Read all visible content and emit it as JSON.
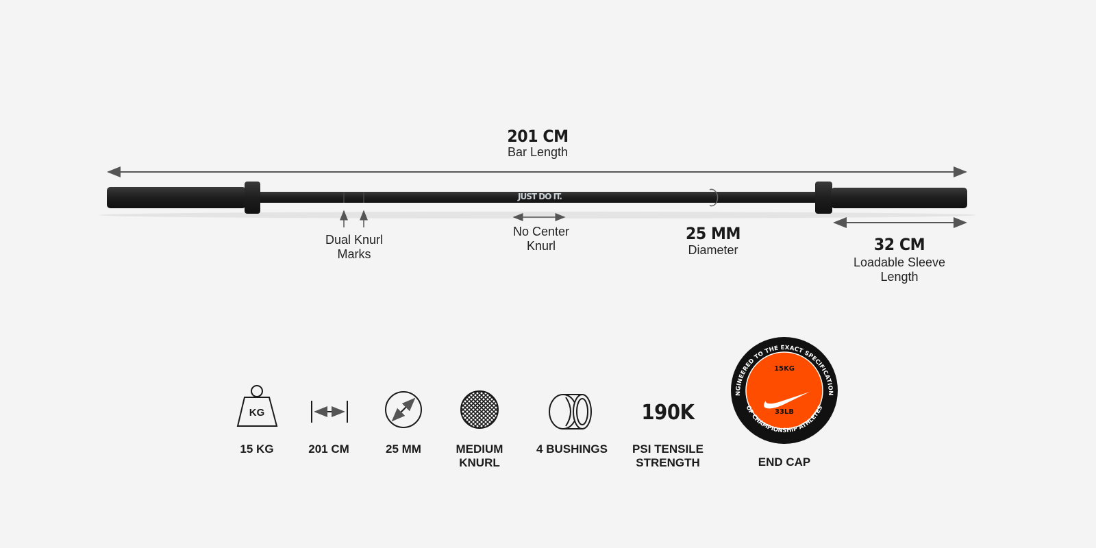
{
  "bar": {
    "logo_text": "JUST DO IT.",
    "length": {
      "value": "201 CM",
      "label": "Bar Length"
    },
    "knurl_marks": {
      "label_line1": "Dual Knurl",
      "label_line2": "Marks"
    },
    "center_knurl": {
      "label_line1": "No Center",
      "label_line2": "Knurl"
    },
    "diameter": {
      "value": "25 MM",
      "label": "Diameter"
    },
    "sleeve": {
      "value": "32 CM",
      "label_line1": "Loadable Sleeve",
      "label_line2": "Length"
    }
  },
  "specs": [
    {
      "icon": "weight-icon",
      "icon_text": "KG",
      "label_line1": "15 KG",
      "label_line2": ""
    },
    {
      "icon": "length-icon",
      "label_line1": "201 CM",
      "label_line2": ""
    },
    {
      "icon": "diameter-icon",
      "label_line1": "25 MM",
      "label_line2": ""
    },
    {
      "icon": "knurl-icon",
      "label_line1": "MEDIUM",
      "label_line2": "KNURL"
    },
    {
      "icon": "bushing-icon",
      "label_line1": "4 BUSHINGS",
      "label_line2": ""
    },
    {
      "icon_text": "190K",
      "label_line1": "PSI TENSILE",
      "label_line2": "STRENGTH"
    },
    {
      "icon": "end-cap-icon",
      "label_line1": "END CAP",
      "label_line2": ""
    }
  ],
  "end_cap": {
    "top_arc": "ENGINEERED TO THE EXACT SPECIFICATIONS",
    "bottom_arc": "OF CHAMPIONSHIP ATHLETES",
    "kg": "15KG",
    "lb": "33LB"
  },
  "colors": {
    "background": "#f4f4f4",
    "bar": "#1c1c1c",
    "accent": "#ff4d00"
  }
}
